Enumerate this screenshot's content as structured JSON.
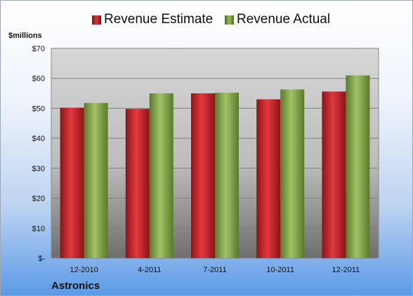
{
  "chart_data": {
    "type": "bar",
    "categories": [
      "12-2010",
      "4-2011",
      "7-2011",
      "10-2011",
      "12-2011"
    ],
    "series": [
      {
        "name": "Revenue Estimate",
        "values": [
          50.2,
          49.8,
          55.0,
          53.0,
          55.6
        ],
        "color": "#c0262b"
      },
      {
        "name": "Revenue Actual",
        "values": [
          51.8,
          55.0,
          55.2,
          56.3,
          61.0
        ],
        "color": "#86a34e"
      }
    ],
    "ylabel": "$millions",
    "ylim": [
      0,
      70
    ],
    "yticks": [
      {
        "value": 0,
        "label": "$-"
      },
      {
        "value": 10,
        "label": "$10"
      },
      {
        "value": 20,
        "label": "$20"
      },
      {
        "value": 30,
        "label": "$30"
      },
      {
        "value": 40,
        "label": "$40"
      },
      {
        "value": 50,
        "label": "$50"
      },
      {
        "value": 60,
        "label": "$60"
      },
      {
        "value": 70,
        "label": "$70"
      }
    ],
    "grid": true,
    "legend_position": "top"
  },
  "footer": {
    "company": "Astronics"
  }
}
